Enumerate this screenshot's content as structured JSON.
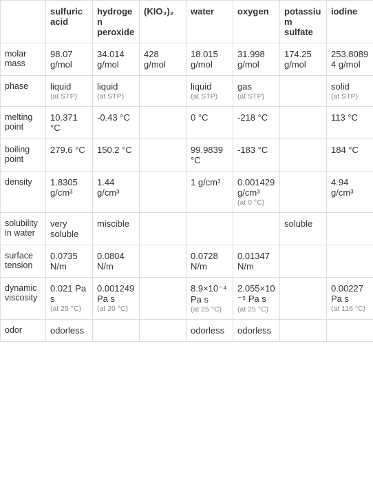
{
  "columns": [
    "",
    "sulfuric acid",
    "hydrogen peroxide",
    "(KIO₃)₂",
    "water",
    "oxygen",
    "potassium sulfate",
    "iodine"
  ],
  "rows": [
    {
      "label": "molar mass",
      "cells": [
        {
          "text": "98.07 g/mol"
        },
        {
          "text": "34.014 g/mol"
        },
        {
          "text": "428 g/mol"
        },
        {
          "text": "18.015 g/mol"
        },
        {
          "text": "31.998 g/mol"
        },
        {
          "text": "174.25 g/mol"
        },
        {
          "text": "253.80894 g/mol"
        }
      ]
    },
    {
      "label": "phase",
      "cells": [
        {
          "text": "liquid",
          "note": "(at STP)"
        },
        {
          "text": "liquid",
          "note": "(at STP)"
        },
        {
          "text": ""
        },
        {
          "text": "liquid",
          "note": "(at STP)"
        },
        {
          "text": "gas",
          "note": "(at STP)"
        },
        {
          "text": ""
        },
        {
          "text": "solid",
          "note": "(at STP)"
        }
      ]
    },
    {
      "label": "melting point",
      "cells": [
        {
          "text": "10.371 °C"
        },
        {
          "text": "-0.43 °C"
        },
        {
          "text": ""
        },
        {
          "text": "0 °C"
        },
        {
          "text": "-218 °C"
        },
        {
          "text": ""
        },
        {
          "text": "113 °C"
        }
      ]
    },
    {
      "label": "boiling point",
      "cells": [
        {
          "text": "279.6 °C"
        },
        {
          "text": "150.2 °C"
        },
        {
          "text": ""
        },
        {
          "text": "99.9839 °C"
        },
        {
          "text": "-183 °C"
        },
        {
          "text": ""
        },
        {
          "text": "184 °C"
        }
      ]
    },
    {
      "label": "density",
      "cells": [
        {
          "text": "1.8305 g/cm³"
        },
        {
          "text": "1.44 g/cm³"
        },
        {
          "text": ""
        },
        {
          "text": "1 g/cm³"
        },
        {
          "text": "0.001429 g/cm³",
          "note": "(at 0 °C)"
        },
        {
          "text": ""
        },
        {
          "text": "4.94 g/cm³"
        }
      ]
    },
    {
      "label": "solubility in water",
      "cells": [
        {
          "text": "very soluble"
        },
        {
          "text": "miscible"
        },
        {
          "text": ""
        },
        {
          "text": ""
        },
        {
          "text": ""
        },
        {
          "text": "soluble"
        },
        {
          "text": ""
        }
      ]
    },
    {
      "label": "surface tension",
      "cells": [
        {
          "text": "0.0735 N/m"
        },
        {
          "text": "0.0804 N/m"
        },
        {
          "text": ""
        },
        {
          "text": "0.0728 N/m"
        },
        {
          "text": "0.01347 N/m"
        },
        {
          "text": ""
        },
        {
          "text": ""
        }
      ]
    },
    {
      "label": "dynamic viscosity",
      "cells": [
        {
          "text": "0.021 Pa s",
          "note": "(at 25 °C)"
        },
        {
          "text": "0.001249 Pa s",
          "note": "(at 20 °C)"
        },
        {
          "text": ""
        },
        {
          "text": "8.9×10⁻⁴ Pa s",
          "note": "(at 25 °C)"
        },
        {
          "text": "2.055×10⁻⁵ Pa s",
          "note": "(at 25 °C)"
        },
        {
          "text": ""
        },
        {
          "text": "0.00227 Pa s",
          "note": "(at 116 °C)"
        }
      ]
    },
    {
      "label": "odor",
      "cells": [
        {
          "text": "odorless"
        },
        {
          "text": ""
        },
        {
          "text": ""
        },
        {
          "text": "odorless"
        },
        {
          "text": "odorless"
        },
        {
          "text": ""
        },
        {
          "text": ""
        }
      ]
    }
  ]
}
